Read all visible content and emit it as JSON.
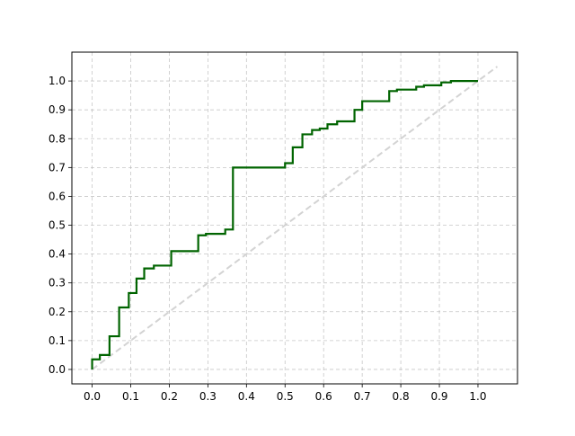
{
  "chart_data": {
    "type": "line",
    "title": "",
    "xlabel": "",
    "ylabel": "",
    "xlim": [
      -0.0525,
      1.1025
    ],
    "ylim": [
      -0.05,
      1.1
    ],
    "grid": true,
    "x_ticks": [
      0.0,
      0.1,
      0.2,
      0.3,
      0.4,
      0.5,
      0.6,
      0.7,
      0.8,
      0.9,
      1.0
    ],
    "y_ticks": [
      0.0,
      0.1,
      0.2,
      0.3,
      0.4,
      0.5,
      0.6,
      0.7,
      0.8,
      0.9,
      1.0
    ],
    "series": [
      {
        "style": "step",
        "color": "#006400",
        "x": [
          0.0,
          0.0,
          0.02,
          0.02,
          0.045,
          0.045,
          0.07,
          0.07,
          0.095,
          0.095,
          0.115,
          0.115,
          0.135,
          0.135,
          0.16,
          0.16,
          0.205,
          0.205,
          0.275,
          0.275,
          0.295,
          0.295,
          0.345,
          0.345,
          0.365,
          0.365,
          0.5,
          0.5,
          0.52,
          0.52,
          0.545,
          0.545,
          0.57,
          0.57,
          0.59,
          0.59,
          0.61,
          0.61,
          0.635,
          0.635,
          0.68,
          0.68,
          0.7,
          0.7,
          0.77,
          0.77,
          0.79,
          0.79,
          0.84,
          0.84,
          0.86,
          0.86,
          0.905,
          0.905,
          0.93,
          0.93,
          1.0
        ],
        "y": [
          0.0,
          0.035,
          0.035,
          0.05,
          0.05,
          0.115,
          0.115,
          0.215,
          0.215,
          0.265,
          0.265,
          0.315,
          0.315,
          0.35,
          0.35,
          0.36,
          0.36,
          0.41,
          0.41,
          0.465,
          0.465,
          0.47,
          0.47,
          0.485,
          0.485,
          0.7,
          0.7,
          0.715,
          0.715,
          0.77,
          0.77,
          0.815,
          0.815,
          0.83,
          0.83,
          0.835,
          0.835,
          0.85,
          0.85,
          0.86,
          0.86,
          0.9,
          0.9,
          0.93,
          0.93,
          0.965,
          0.965,
          0.97,
          0.97,
          0.98,
          0.98,
          0.985,
          0.985,
          0.995,
          0.995,
          1.0,
          1.0
        ]
      },
      {
        "style": "dashed",
        "color": "#d3d3d3",
        "x": [
          0.0,
          1.05
        ],
        "y": [
          0.0,
          1.05
        ]
      }
    ]
  }
}
